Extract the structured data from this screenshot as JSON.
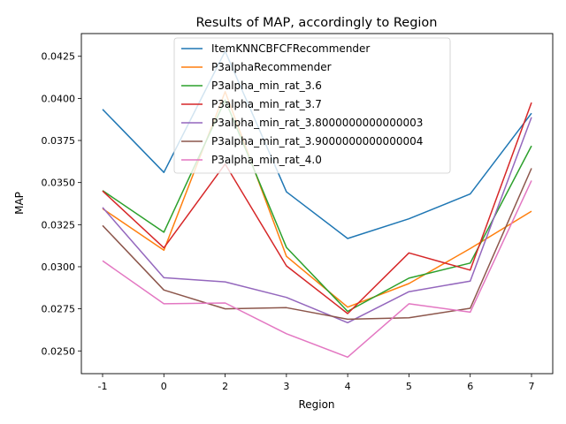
{
  "chart_data": {
    "type": "line",
    "title": "Results of MAP, accordingly to Region",
    "xlabel": "Region",
    "ylabel": "MAP",
    "x": [
      -1,
      0,
      2,
      3,
      4,
      5,
      6,
      7
    ],
    "x_tick_labels": [
      "-1",
      "0",
      "2",
      "3",
      "4",
      "5",
      "6",
      "7"
    ],
    "y_ticks": [
      0.025,
      0.0275,
      0.03,
      0.0325,
      0.035,
      0.0375,
      0.04,
      0.0425
    ],
    "y_tick_labels": [
      "0.0250",
      "0.0275",
      "0.0300",
      "0.0325",
      "0.0350",
      "0.0375",
      "0.0400",
      "0.0425"
    ],
    "ylim": [
      0.02365,
      0.04385
    ],
    "grid": false,
    "legend_position": "upper center",
    "series": [
      {
        "name": "ItemKNNCBFCFRecommender",
        "color": "#1f77b4",
        "values": [
          0.03935,
          0.0356,
          0.0428,
          0.03445,
          0.03168,
          0.03285,
          0.03432,
          0.03912
        ]
      },
      {
        "name": "P3alphaRecommender",
        "color": "#ff7f0e",
        "values": [
          0.03345,
          0.03098,
          0.0404,
          0.03062,
          0.0276,
          0.029,
          0.03108,
          0.0333
        ]
      },
      {
        "name": "P3alpha_min_rat_3.6",
        "color": "#2ca02c",
        "values": [
          0.03452,
          0.03205,
          0.0399,
          0.03115,
          0.02735,
          0.02932,
          0.03022,
          0.03718
        ]
      },
      {
        "name": "P3alpha_min_rat_3.7",
        "color": "#d62728",
        "values": [
          0.0345,
          0.03112,
          0.0361,
          0.03005,
          0.02722,
          0.03082,
          0.0298,
          0.03975
        ]
      },
      {
        "name": "P3alpha_min_rat_3.8000000000000003",
        "color": "#9467bd",
        "values": [
          0.03352,
          0.02935,
          0.0291,
          0.02818,
          0.02668,
          0.02852,
          0.02915,
          0.03888
        ]
      },
      {
        "name": "P3alpha_min_rat_3.9000000000000004",
        "color": "#8c564b",
        "values": [
          0.03245,
          0.02862,
          0.0275,
          0.02757,
          0.02688,
          0.02697,
          0.02753,
          0.03585
        ]
      },
      {
        "name": "P3alpha_min_rat_4.0",
        "color": "#e377c2",
        "values": [
          0.03035,
          0.0278,
          0.02785,
          0.02602,
          0.02463,
          0.0278,
          0.0273,
          0.03512
        ]
      }
    ]
  }
}
